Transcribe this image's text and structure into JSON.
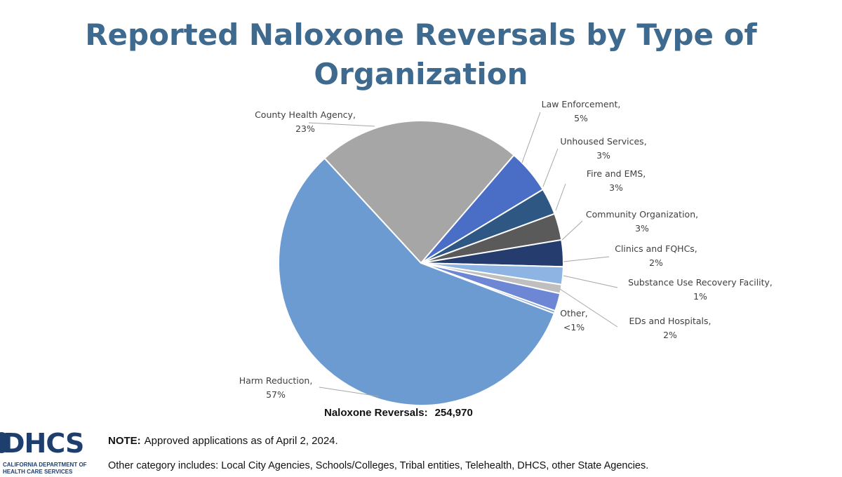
{
  "title": "Reported Naloxone Reversals by Type of Organization",
  "chart_data": {
    "type": "pie",
    "title": "Reported Naloxone Reversals by Type of Organization",
    "slices": [
      {
        "label": "County Health Agency,",
        "pct_label": "23%",
        "value": 23,
        "color": "#a6a6a6"
      },
      {
        "label": "Law Enforcement,",
        "pct_label": "5%",
        "value": 5,
        "color": "#4a6ec5"
      },
      {
        "label": "Unhoused Services,",
        "pct_label": "3%",
        "value": 3,
        "color": "#2f5783"
      },
      {
        "label": "Fire and EMS,",
        "pct_label": "3%",
        "value": 3,
        "color": "#5a5a5a"
      },
      {
        "label": "Community Organization,",
        "pct_label": "3%",
        "value": 3,
        "color": "#243c6e"
      },
      {
        "label": "Clinics and FQHCs,",
        "pct_label": "2%",
        "value": 2,
        "color": "#8db4e2"
      },
      {
        "label": "Substance Use Recovery Facility,",
        "pct_label": "1%",
        "value": 1,
        "color": "#bfbfbf"
      },
      {
        "label": "EDs and Hospitals,",
        "pct_label": "2%",
        "value": 2,
        "color": "#6d87d4"
      },
      {
        "label": "Other,",
        "pct_label": "<1%",
        "value": 0.3,
        "color": "#7fa0c8"
      },
      {
        "label": "Harm Reduction,",
        "pct_label": "57%",
        "value": 57,
        "color": "#6b9bd1"
      }
    ],
    "total_label": "Naloxone Reversals:",
    "total_value": "254,970"
  },
  "logo": {
    "mark": "DHCS",
    "line1": "CALIFORNIA DEPARTMENT OF",
    "line2": "HEALTH CARE SERVICES"
  },
  "notes": {
    "note_label": "NOTE:",
    "note_text": "Approved applications as of April 2, 2024.",
    "other_text": "Other category includes: Local City Agencies, Schools/Colleges, Tribal entities, Telehealth, DHCS, other State Agencies."
  }
}
